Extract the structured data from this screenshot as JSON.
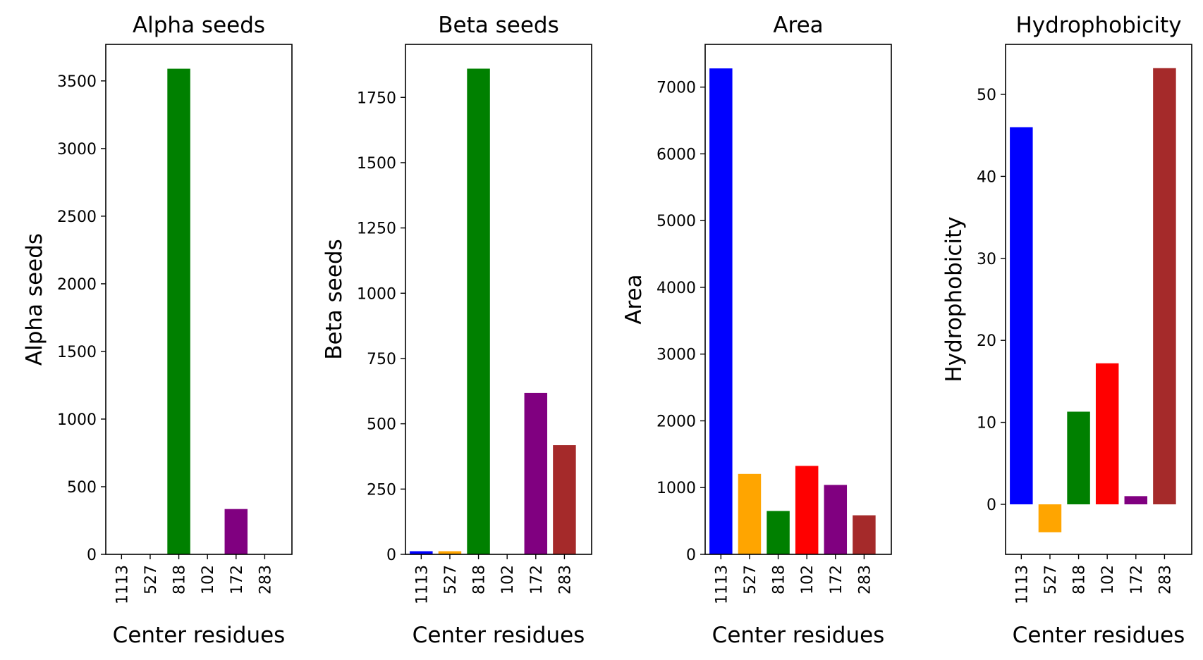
{
  "chart_data": [
    {
      "type": "bar",
      "title": "Alpha seeds",
      "xlabel": "Center residues",
      "ylabel": "Alpha seeds",
      "categories": [
        "1113",
        "527",
        "818",
        "102",
        "172",
        "283"
      ],
      "values": [
        0,
        0,
        3590,
        0,
        335,
        0
      ],
      "colors": [
        "#0000ff",
        "#ffa500",
        "#008000",
        "#ff0000",
        "#800080",
        "#a52a2a"
      ],
      "ylim": [
        0,
        3770
      ],
      "yticks": [
        0,
        500,
        1000,
        1500,
        2000,
        2500,
        3000,
        3500
      ],
      "grid": false,
      "legend": false
    },
    {
      "type": "bar",
      "title": "Beta seeds",
      "xlabel": "Center residues",
      "ylabel": "Beta seeds",
      "categories": [
        "1113",
        "527",
        "818",
        "102",
        "172",
        "283"
      ],
      "values": [
        12,
        12,
        1860,
        0,
        618,
        418
      ],
      "colors": [
        "#0000ff",
        "#ffa500",
        "#008000",
        "#ff0000",
        "#800080",
        "#a52a2a"
      ],
      "ylim": [
        0,
        1953
      ],
      "yticks": [
        0,
        250,
        500,
        750,
        1000,
        1250,
        1500,
        1750
      ],
      "grid": false,
      "legend": false
    },
    {
      "type": "bar",
      "title": "Area",
      "xlabel": "Center residues",
      "ylabel": "Area",
      "categories": [
        "1113",
        "527",
        "818",
        "102",
        "172",
        "283"
      ],
      "values": [
        7280,
        1205,
        650,
        1325,
        1040,
        585
      ],
      "colors": [
        "#0000ff",
        "#ffa500",
        "#008000",
        "#ff0000",
        "#800080",
        "#a52a2a"
      ],
      "ylim": [
        0,
        7640
      ],
      "yticks": [
        0,
        1000,
        2000,
        3000,
        4000,
        5000,
        6000,
        7000
      ],
      "grid": false,
      "legend": false
    },
    {
      "type": "bar",
      "title": "Hydrophobicity",
      "xlabel": "Center residues",
      "ylabel": "Hydrophobicity",
      "categories": [
        "1113",
        "527",
        "818",
        "102",
        "172",
        "283"
      ],
      "values": [
        46,
        -3.4,
        11.3,
        17.2,
        1,
        53.2
      ],
      "colors": [
        "#0000ff",
        "#ffa500",
        "#008000",
        "#ff0000",
        "#800080",
        "#a52a2a"
      ],
      "ylim": [
        -6.1,
        56.1
      ],
      "yticks": [
        0,
        10,
        20,
        30,
        40,
        50
      ],
      "grid": false,
      "legend": false
    }
  ]
}
